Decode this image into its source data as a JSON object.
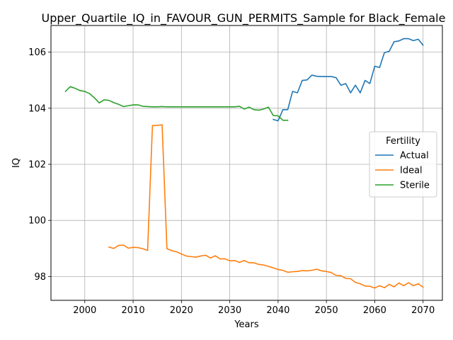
{
  "chart_data": {
    "type": "line",
    "title": "Upper_Quartile_IQ_in_FAVOUR_GUN_PERMITS_Sample for Black_Female",
    "xlabel": "Years",
    "ylabel": "IQ",
    "xlim": [
      1993,
      2074
    ],
    "ylim": [
      97.15,
      106.95
    ],
    "x_ticks": [
      2000,
      2010,
      2020,
      2030,
      2040,
      2050,
      2060,
      2070
    ],
    "y_ticks": [
      98,
      100,
      102,
      104,
      106
    ],
    "grid": true,
    "legend": {
      "title": "Fertility",
      "placement": "center-right"
    },
    "series": [
      {
        "name": "Actual",
        "color": "#1f77b4",
        "x": [
          2039,
          2040,
          2041,
          2042,
          2043,
          2044,
          2045,
          2046,
          2047,
          2048,
          2049,
          2050,
          2051,
          2052,
          2053,
          2054,
          2055,
          2056,
          2057,
          2058,
          2059,
          2060,
          2061,
          2062,
          2063,
          2064,
          2065,
          2066,
          2067,
          2068,
          2069,
          2070
        ],
        "y": [
          103.6,
          103.55,
          103.95,
          103.95,
          104.6,
          104.55,
          104.99,
          105.01,
          105.18,
          105.14,
          105.13,
          105.13,
          105.13,
          105.09,
          104.82,
          104.88,
          104.55,
          104.82,
          104.55,
          104.99,
          104.88,
          105.5,
          105.45,
          105.98,
          106.03,
          106.37,
          106.4,
          106.48,
          106.48,
          106.41,
          106.46,
          106.25
        ]
      },
      {
        "name": "Ideal",
        "color": "#ff7f0e",
        "x": [
          2005,
          2006,
          2007,
          2008,
          2009,
          2010,
          2011,
          2012,
          2013,
          2014,
          2015,
          2016,
          2017,
          2018,
          2019,
          2020,
          2021,
          2022,
          2023,
          2024,
          2025,
          2026,
          2027,
          2028,
          2029,
          2030,
          2031,
          2032,
          2033,
          2034,
          2035,
          2036,
          2037,
          2038,
          2039,
          2040,
          2041,
          2042,
          2043,
          2044,
          2045,
          2046,
          2047,
          2048,
          2049,
          2050,
          2051,
          2052,
          2053,
          2054,
          2055,
          2056,
          2057,
          2058,
          2059,
          2060,
          2061,
          2062,
          2063,
          2064,
          2065,
          2066,
          2067,
          2068,
          2069,
          2070
        ],
        "y": [
          99.05,
          99.0,
          99.11,
          99.12,
          99.01,
          99.04,
          99.03,
          98.99,
          98.93,
          103.38,
          103.39,
          103.41,
          98.99,
          98.92,
          98.88,
          98.8,
          98.73,
          98.71,
          98.69,
          98.73,
          98.76,
          98.66,
          98.74,
          98.63,
          98.63,
          98.56,
          98.57,
          98.5,
          98.57,
          98.49,
          98.49,
          98.43,
          98.41,
          98.36,
          98.31,
          98.25,
          98.22,
          98.15,
          98.17,
          98.18,
          98.21,
          98.2,
          98.22,
          98.26,
          98.2,
          98.18,
          98.14,
          98.04,
          98.03,
          97.93,
          97.92,
          97.79,
          97.74,
          97.66,
          97.65,
          97.59,
          97.67,
          97.6,
          97.72,
          97.63,
          97.77,
          97.67,
          97.78,
          97.67,
          97.74,
          97.62
        ]
      },
      {
        "name": "Sterile",
        "color": "#2ca02c",
        "x": [
          1996,
          1997,
          1998,
          1999,
          2000,
          2001,
          2002,
          2003,
          2004,
          2005,
          2006,
          2007,
          2008,
          2009,
          2010,
          2011,
          2012,
          2013,
          2014,
          2015,
          2016,
          2017,
          2018,
          2019,
          2020,
          2021,
          2022,
          2023,
          2024,
          2025,
          2026,
          2027,
          2028,
          2029,
          2030,
          2031,
          2032,
          2033,
          2034,
          2035,
          2036,
          2037,
          2038,
          2039,
          2040,
          2041,
          2042
        ],
        "y": [
          104.6,
          104.77,
          104.71,
          104.63,
          104.6,
          104.52,
          104.37,
          104.19,
          104.3,
          104.28,
          104.2,
          104.14,
          104.06,
          104.09,
          104.12,
          104.12,
          104.07,
          104.06,
          104.05,
          104.05,
          104.06,
          104.05,
          104.05,
          104.05,
          104.05,
          104.05,
          104.05,
          104.05,
          104.05,
          104.05,
          104.05,
          104.05,
          104.05,
          104.05,
          104.05,
          104.05,
          104.07,
          103.97,
          104.04,
          103.95,
          103.93,
          103.97,
          104.04,
          103.74,
          103.73,
          103.57,
          103.57
        ]
      }
    ]
  }
}
